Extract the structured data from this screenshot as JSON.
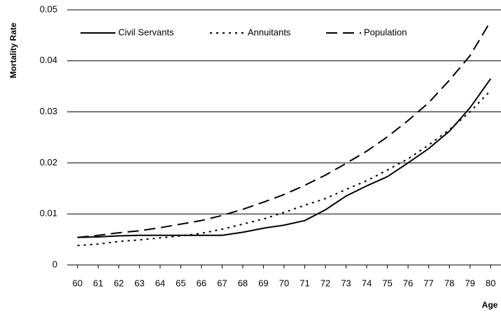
{
  "chart_data": {
    "type": "line",
    "x_label": "Age",
    "y_label": "Mortality Rate",
    "x": [
      60,
      61,
      62,
      63,
      64,
      65,
      66,
      67,
      68,
      69,
      70,
      71,
      72,
      73,
      74,
      75,
      76,
      77,
      78,
      79,
      80
    ],
    "xlim": [
      59.5,
      80.5
    ],
    "xticks": [
      60,
      61,
      62,
      63,
      64,
      65,
      66,
      67,
      68,
      69,
      70,
      71,
      72,
      73,
      74,
      75,
      76,
      77,
      78,
      79,
      80
    ],
    "ylim": [
      0,
      0.05
    ],
    "yticks": [
      0,
      0.01,
      0.02,
      0.03,
      0.04,
      0.05
    ],
    "grid": true,
    "legend": "top-left",
    "series": [
      {
        "name": "Civil Servants",
        "color": "#000000",
        "dash": "solid",
        "values": [
          0.0054,
          0.0055,
          0.0057,
          0.0058,
          0.0058,
          0.0058,
          0.0058,
          0.0058,
          0.0064,
          0.0072,
          0.0078,
          0.0087,
          0.0108,
          0.0135,
          0.0155,
          0.0173,
          0.02,
          0.0228,
          0.0262,
          0.0308,
          0.0365
        ]
      },
      {
        "name": "Annuitants",
        "color": "#000000",
        "dash": "dotted",
        "values": [
          0.0038,
          0.0041,
          0.0046,
          0.0049,
          0.0053,
          0.0057,
          0.0062,
          0.007,
          0.008,
          0.009,
          0.0103,
          0.0117,
          0.013,
          0.0148,
          0.0165,
          0.0186,
          0.0208,
          0.0235,
          0.0265,
          0.03,
          0.0342
        ]
      },
      {
        "name": "Population",
        "color": "#000000",
        "dash": "dashed",
        "values": [
          0.0054,
          0.0058,
          0.0063,
          0.0067,
          0.0073,
          0.008,
          0.0087,
          0.0097,
          0.0109,
          0.0123,
          0.0138,
          0.0156,
          0.0176,
          0.0199,
          0.0223,
          0.0251,
          0.0283,
          0.0318,
          0.0362,
          0.041,
          0.0478
        ]
      }
    ]
  }
}
